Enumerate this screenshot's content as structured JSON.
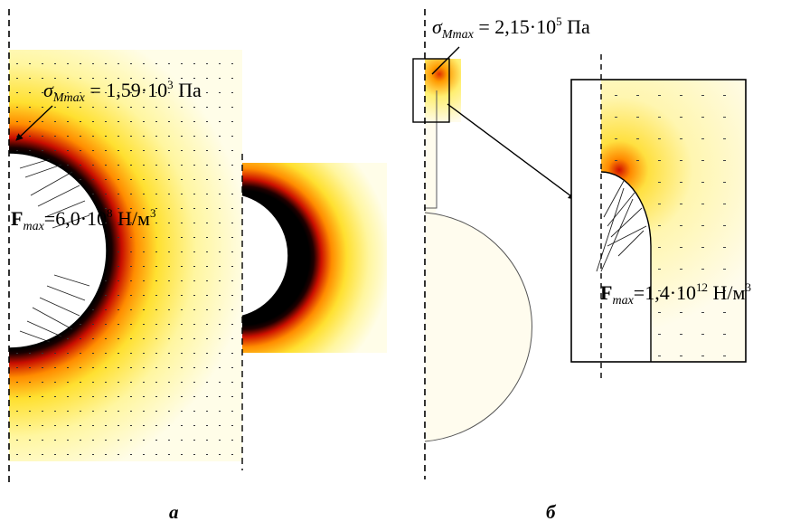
{
  "panel_a": {
    "sigma_symbol": "σ",
    "sigma_sub": "Mmax",
    "sigma_value": " = 1,59·10",
    "sigma_exp": "3",
    "sigma_unit": " Па",
    "force_symbol": "F",
    "force_sub": "max",
    "force_value": "=6,0·10",
    "force_exp": "8",
    "force_unit": " Н/м",
    "force_unit_exp": "3",
    "caption": "а"
  },
  "panel_b": {
    "sigma_symbol": "σ",
    "sigma_sub": "Mmax",
    "sigma_value": " = 2,15·10",
    "sigma_exp": "5",
    "sigma_unit": " Па",
    "force_symbol": "F",
    "force_sub": "max",
    "force_value": "=1,4·10",
    "force_exp": "12",
    "force_unit": " Н/м",
    "force_unit_exp": "3",
    "caption": "б"
  },
  "colors": {
    "field_light": "#fffde6",
    "field_yellow": "#ffef40",
    "field_orange": "#ff9a00",
    "field_red": "#d01000",
    "field_dark": "#150000"
  }
}
